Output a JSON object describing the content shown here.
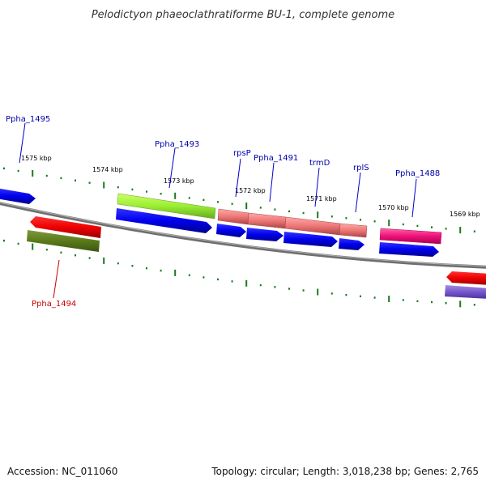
{
  "title": "Pelodictyon phaeoclathratiforme BU-1, complete genome",
  "footer": {
    "accession": "Accession: NC_011060",
    "summary": "Topology: circular; Length: 3,018,238 bp; Genes: 2,765"
  },
  "kbp_labels": [
    "1575 kbp",
    "1574 kbp",
    "1573 kbp",
    "1572 kbp",
    "1571 kbp",
    "1570 kbp",
    "1569 kbp"
  ],
  "gene_labels": [
    {
      "text": "Ppha_1495",
      "color": "#0000aa"
    },
    {
      "text": "Ppha_1493",
      "color": "#0000aa"
    },
    {
      "text": "rpsP",
      "color": "#0000aa"
    },
    {
      "text": "Ppha_1491",
      "color": "#0000aa"
    },
    {
      "text": "trmD",
      "color": "#0000aa"
    },
    {
      "text": "rplS",
      "color": "#0000aa"
    },
    {
      "text": "Ppha_1488",
      "color": "#0000aa"
    },
    {
      "text": "Ppha_1494",
      "color": "#cc0000"
    }
  ],
  "colors": {
    "backbone": "#7a7a7a",
    "tick": "#1a7a1a",
    "cds_blue": "#0000ee",
    "gene_red": "#ee0000",
    "olive": "#5a7a1a",
    "lime": "#99ee33",
    "salmon": "#ee7777",
    "magenta": "#ee1177",
    "lavender": "#7755cc"
  }
}
